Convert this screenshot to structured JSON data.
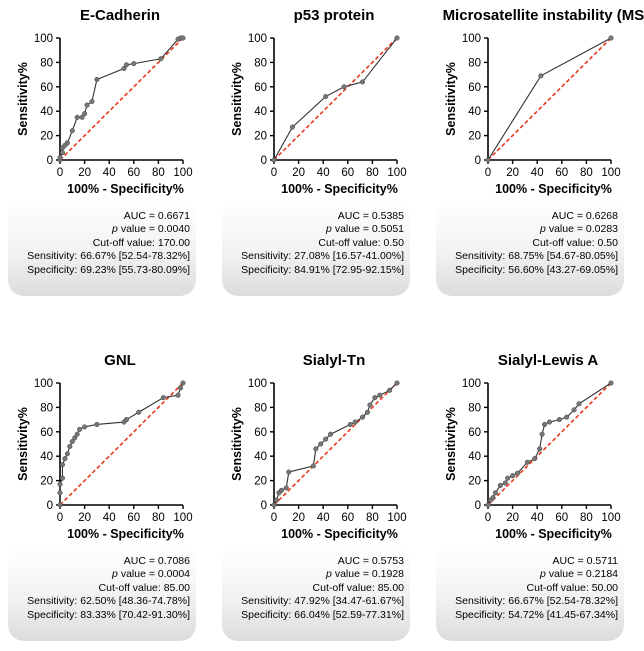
{
  "chart_data": [
    {
      "type": "line",
      "title": "E-Cadherin",
      "xlabel": "100% - Specificity%",
      "ylabel": "Sensitivity%",
      "xlim": [
        0,
        100
      ],
      "ylim": [
        0,
        100
      ],
      "xticks": [
        "0",
        "20",
        "40",
        "60",
        "80",
        "100"
      ],
      "yticks": [
        "0",
        "20",
        "40",
        "60",
        "80",
        "100"
      ],
      "series": [
        {
          "name": "ROC curve",
          "x": [
            0,
            0,
            2,
            2,
            4,
            6,
            10,
            14,
            18,
            20,
            22,
            26,
            30,
            52,
            54,
            60,
            82,
            96,
            98,
            100
          ],
          "y": [
            0,
            2,
            6,
            10,
            12,
            14,
            24,
            35,
            35,
            38,
            45,
            48,
            66,
            75,
            78,
            79,
            83,
            99,
            100,
            100
          ]
        },
        {
          "name": "Reference line",
          "x": [
            0,
            100
          ],
          "y": [
            0,
            100
          ]
        }
      ],
      "stats": {
        "auc_label": "AUC = 0.6671",
        "p_label": "p",
        "p_value": "value = 0.0040",
        "cutoff": "Cut-off value: 170.00",
        "sensitivity": "Sensitivity: 66.67% [52.54-78.32%]",
        "specificity": "Specificity: 69.23% [55.73-80.09%]"
      },
      "colors": {
        "curve": "#333333",
        "points": "#777777",
        "reference": "#e8371d"
      }
    },
    {
      "type": "line",
      "title": "p53 protein",
      "xlabel": "100% - Specificity%",
      "ylabel": "Sensitivity%",
      "xlim": [
        0,
        100
      ],
      "ylim": [
        0,
        100
      ],
      "xticks": [
        "0",
        "20",
        "40",
        "60",
        "80",
        "100"
      ],
      "yticks": [
        "0",
        "20",
        "40",
        "60",
        "80",
        "100"
      ],
      "series": [
        {
          "name": "ROC curve",
          "x": [
            0,
            15,
            42,
            57,
            72,
            100
          ],
          "y": [
            0,
            27,
            52,
            60,
            64,
            100
          ]
        },
        {
          "name": "Reference line",
          "x": [
            0,
            100
          ],
          "y": [
            0,
            100
          ]
        }
      ],
      "stats": {
        "auc_label": "AUC = 0.5385",
        "p_label": "p",
        "p_value": "value = 0.5051",
        "cutoff": "Cut-off value: 0.50",
        "sensitivity": "Sensitivity: 27.08% [16.57-41.00%]",
        "specificity": "Specificity: 84.91% [72.95-92.15%]"
      },
      "colors": {
        "curve": "#333333",
        "points": "#777777",
        "reference": "#e8371d"
      }
    },
    {
      "type": "line",
      "title": "Microsatellite instability (MSI)",
      "xlabel": "100% - Specificity%",
      "ylabel": "Sensitivity%",
      "xlim": [
        0,
        100
      ],
      "ylim": [
        0,
        100
      ],
      "xticks": [
        "0",
        "20",
        "40",
        "60",
        "80",
        "100"
      ],
      "yticks": [
        "0",
        "20",
        "40",
        "60",
        "80",
        "100"
      ],
      "series": [
        {
          "name": "ROC curve",
          "x": [
            0,
            43,
            100
          ],
          "y": [
            0,
            69,
            100
          ]
        },
        {
          "name": "Reference line",
          "x": [
            0,
            100
          ],
          "y": [
            0,
            100
          ]
        }
      ],
      "stats": {
        "auc_label": "AUC = 0.6268",
        "p_label": "p",
        "p_value": "value = 0.0283",
        "cutoff": "Cut-off value: 0.50",
        "sensitivity": "Sensitivity: 68.75% [54.67-80.05%]",
        "specificity": "Specificity: 56.60% [43.27-69.05%]"
      },
      "colors": {
        "curve": "#333333",
        "points": "#777777",
        "reference": "#e8371d"
      }
    },
    {
      "type": "line",
      "title": "GNL",
      "xlabel": "100% - Specificity%",
      "ylabel": "Sensitivity%",
      "xlim": [
        0,
        100
      ],
      "ylim": [
        0,
        100
      ],
      "xticks": [
        "0",
        "20",
        "40",
        "60",
        "80",
        "100"
      ],
      "yticks": [
        "0",
        "20",
        "40",
        "60",
        "80",
        "100"
      ],
      "series": [
        {
          "name": "ROC curve",
          "x": [
            0,
            0,
            0,
            2,
            2,
            4,
            6,
            8,
            10,
            12,
            14,
            16,
            20,
            30,
            52,
            54,
            64,
            84,
            96,
            98,
            100
          ],
          "y": [
            0,
            10,
            17,
            22,
            33,
            38,
            42,
            48,
            52,
            55,
            58,
            62,
            64,
            66,
            68,
            70,
            76,
            88,
            90,
            96,
            100
          ]
        },
        {
          "name": "Reference line",
          "x": [
            0,
            100
          ],
          "y": [
            0,
            100
          ]
        }
      ],
      "stats": {
        "auc_label": "AUC = 0.7086",
        "p_label": "p",
        "p_value": "value = 0.0004",
        "cutoff": "Cut-off value: 85.00",
        "sensitivity": "Sensitivity: 62.50% [48.36-74.78%]",
        "specificity": "Specificity: 83.33% [70.42-91.30%]"
      },
      "colors": {
        "curve": "#333333",
        "points": "#777777",
        "reference": "#e8371d"
      }
    },
    {
      "type": "line",
      "title": "Sialyl-Tn",
      "xlabel": "100% - Specificity%",
      "ylabel": "Sensitivity%",
      "xlim": [
        0,
        100
      ],
      "ylim": [
        0,
        100
      ],
      "xticks": [
        "0",
        "20",
        "40",
        "60",
        "80",
        "100"
      ],
      "yticks": [
        "0",
        "20",
        "40",
        "60",
        "80",
        "100"
      ],
      "series": [
        {
          "name": "ROC curve",
          "x": [
            0,
            2,
            4,
            6,
            10,
            12,
            32,
            34,
            38,
            42,
            46,
            62,
            66,
            72,
            76,
            78,
            82,
            86,
            94,
            100
          ],
          "y": [
            0,
            4,
            10,
            12,
            14,
            27,
            32,
            46,
            50,
            54,
            58,
            66,
            68,
            72,
            76,
            82,
            88,
            90,
            94,
            100
          ]
        },
        {
          "name": "Reference line",
          "x": [
            0,
            100
          ],
          "y": [
            0,
            100
          ]
        }
      ],
      "stats": {
        "auc_label": "AUC = 0.5753",
        "p_label": "p",
        "p_value": "value = 0.1928",
        "cutoff": "Cut-off value: 85.00",
        "sensitivity": "Sensitivity: 47.92% [34.47-61.67%]",
        "specificity": "Specificity: 66.04% [52.59-77.31%]"
      },
      "colors": {
        "curve": "#333333",
        "points": "#777777",
        "reference": "#e8371d"
      }
    },
    {
      "type": "line",
      "title": "Sialyl-Lewis A",
      "xlabel": "100% - Specificity%",
      "ylabel": "Sensitivity%",
      "xlim": [
        0,
        100
      ],
      "ylim": [
        0,
        100
      ],
      "xticks": [
        "0",
        "20",
        "40",
        "60",
        "80",
        "100"
      ],
      "yticks": [
        "0",
        "20",
        "40",
        "60",
        "80",
        "100"
      ],
      "series": [
        {
          "name": "ROC curve",
          "x": [
            0,
            2,
            4,
            6,
            10,
            14,
            16,
            20,
            24,
            32,
            38,
            42,
            44,
            46,
            50,
            58,
            64,
            70,
            74,
            100
          ],
          "y": [
            0,
            4,
            6,
            10,
            16,
            18,
            22,
            24,
            26,
            35,
            38,
            46,
            58,
            66,
            68,
            70,
            72,
            78,
            83,
            100
          ]
        },
        {
          "name": "Reference line",
          "x": [
            0,
            100
          ],
          "y": [
            0,
            100
          ]
        }
      ],
      "stats": {
        "auc_label": "AUC = 0.5711",
        "p_label": "p",
        "p_value": "value = 0.2184",
        "cutoff": "Cut-off value: 50.00",
        "sensitivity": "Sensitivity: 66.67% [52.54-78.32%]",
        "specificity": "Specificity: 54.72% [41.45-67.34%]"
      },
      "colors": {
        "curve": "#333333",
        "points": "#777777",
        "reference": "#e8371d"
      }
    }
  ]
}
